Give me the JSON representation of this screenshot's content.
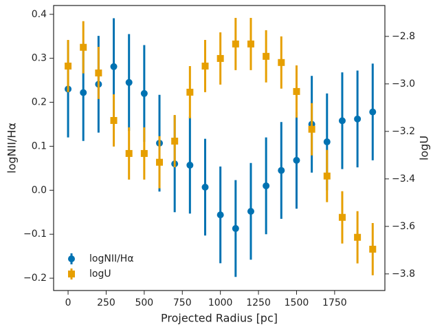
{
  "chart_data": {
    "type": "errorbar",
    "xlabel": "Projected Radius [pc]",
    "ylabel": "logNII/Hα",
    "y2label": "logU",
    "x": [
      0,
      100,
      200,
      300,
      400,
      500,
      600,
      700,
      800,
      900,
      1000,
      1100,
      1200,
      1300,
      1400,
      1500,
      1600,
      1700,
      1800,
      1900,
      2000
    ],
    "xlim": [
      -95,
      2080
    ],
    "xticks": [
      0,
      250,
      500,
      750,
      1000,
      1250,
      1500,
      1750
    ],
    "ylim": [
      -0.228,
      0.42
    ],
    "yticks": [
      {
        "value": -0.2,
        "label": "−0.2"
      },
      {
        "value": -0.1,
        "label": "−0.1"
      },
      {
        "value": 0,
        "label": "0.0"
      },
      0.1,
      0.2,
      0.3,
      0.4
    ],
    "y2lim": [
      -3.87,
      -2.67
    ],
    "y2ticks": [
      {
        "value": -3.8,
        "label": "−3.8"
      },
      {
        "value": -3.6,
        "label": "−3.6"
      },
      {
        "value": -3.4,
        "label": "−3.4"
      },
      {
        "value": -3.2,
        "label": "−3.2"
      },
      {
        "value": -3.0,
        "label": "−3.0"
      },
      {
        "value": -2.8,
        "label": "−2.8"
      }
    ],
    "legend": "lower left",
    "series": [
      {
        "name": "logNII/Hα",
        "color": "#0072b2",
        "marker": "circle",
        "values": [
          0.23,
          0.222,
          0.241,
          0.281,
          0.245,
          0.22,
          0.107,
          0.06,
          0.057,
          0.007,
          -0.056,
          -0.087,
          -0.048,
          0.01,
          0.045,
          0.068,
          0.15,
          0.11,
          0.158,
          0.162,
          0.178
        ],
        "errors": [
          0.11,
          0.11,
          0.11,
          0.11,
          0.11,
          0.11,
          0.11,
          0.11,
          0.11,
          0.11,
          0.11,
          0.11,
          0.11,
          0.11,
          0.11,
          0.11,
          0.11,
          0.11,
          0.11,
          0.11,
          0.11
        ]
      },
      {
        "name": "logU",
        "color": "#e69f00",
        "marker": "square",
        "axis": "y2",
        "values": [
          -2.925,
          -2.846,
          -2.954,
          -3.154,
          -3.293,
          -3.293,
          -3.33,
          -3.241,
          -3.035,
          -2.925,
          -2.893,
          -2.832,
          -2.832,
          -2.884,
          -2.91,
          -3.032,
          -3.191,
          -3.388,
          -3.562,
          -3.646,
          -3.696
        ],
        "errors": [
          0.11,
          0.11,
          0.11,
          0.11,
          0.11,
          0.11,
          0.11,
          0.11,
          0.11,
          0.11,
          0.11,
          0.11,
          0.11,
          0.11,
          0.11,
          0.11,
          0.11,
          0.11,
          0.11,
          0.11,
          0.11
        ]
      }
    ]
  }
}
